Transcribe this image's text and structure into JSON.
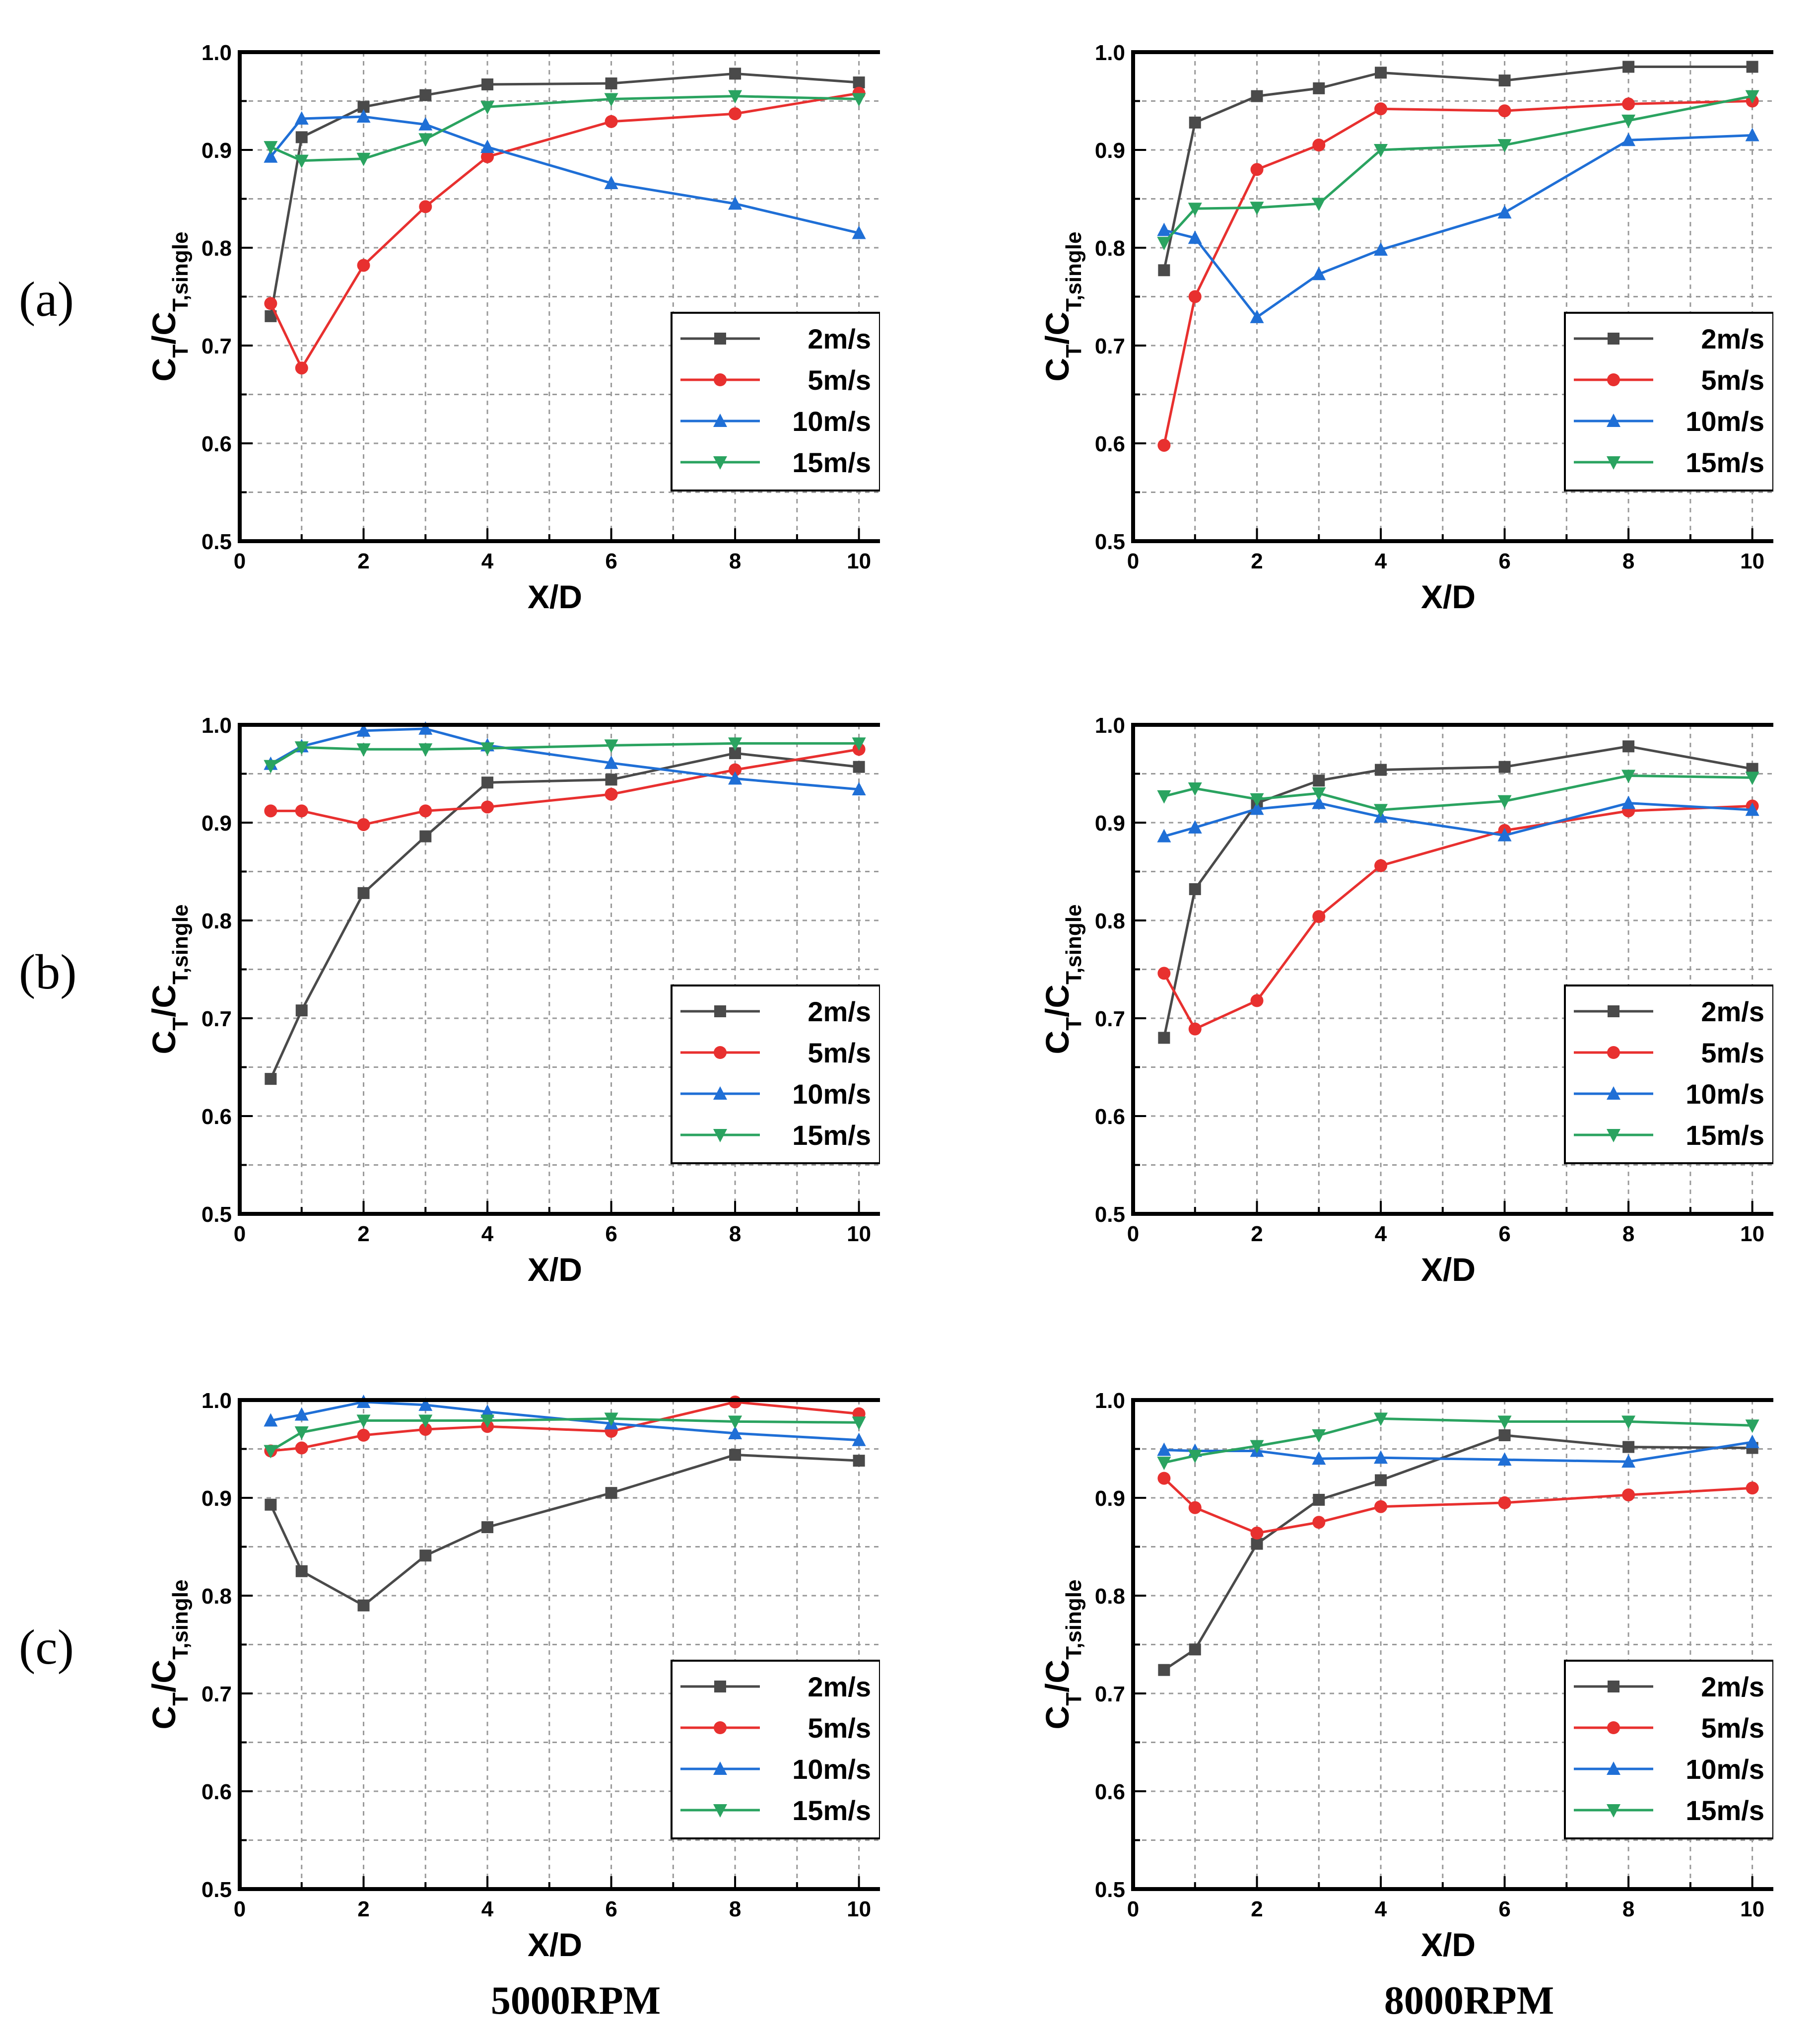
{
  "figure": {
    "row_labels": [
      "(a)",
      "(b)",
      "(c)"
    ],
    "col_labels": [
      "5000RPM",
      "8000RPM"
    ]
  },
  "legend_labels": [
    "2m/s",
    "5m/s",
    "10m/s",
    "15m/s"
  ],
  "series_colors": [
    "#4a4a4a",
    "#e8302f",
    "#1f6fd6",
    "#2aa360"
  ],
  "series_markers": [
    "square",
    "circle",
    "triangle-up",
    "triangle-down"
  ],
  "chart_data": [
    {
      "type": "line",
      "panel": "(a) 5000RPM",
      "xlabel": "X/D",
      "ylabel_main": "C",
      "ylabel_sub": "T",
      "ylabel_main2": "/C",
      "ylabel_sub2": "T,single",
      "xlim": [
        0,
        10.5
      ],
      "ylim": [
        0.5,
        1.0
      ],
      "xticks": [
        0,
        2,
        4,
        6,
        8,
        10
      ],
      "yticks": [
        0.5,
        0.6,
        0.7,
        0.8,
        0.9,
        1.0
      ],
      "x": [
        0.5,
        1,
        2,
        3,
        4,
        6,
        8,
        10
      ],
      "series": [
        {
          "name": "2m/s",
          "values": [
            0.73,
            0.913,
            0.944,
            0.956,
            0.967,
            0.968,
            0.978,
            0.969
          ]
        },
        {
          "name": "5m/s",
          "values": [
            0.743,
            0.677,
            0.782,
            0.842,
            0.893,
            0.929,
            0.937,
            0.958
          ]
        },
        {
          "name": "10m/s",
          "values": [
            0.893,
            0.932,
            0.934,
            0.926,
            0.903,
            0.866,
            0.845,
            0.815
          ]
        },
        {
          "name": "15m/s",
          "values": [
            0.903,
            0.889,
            0.891,
            0.911,
            0.944,
            0.952,
            0.955,
            0.952
          ]
        }
      ]
    },
    {
      "type": "line",
      "panel": "(a) 8000RPM",
      "xlabel": "X/D",
      "ylabel_main": "C",
      "ylabel_sub": "T",
      "ylabel_main2": "/C",
      "ylabel_sub2": "T,single",
      "xlim": [
        0,
        10.5
      ],
      "ylim": [
        0.5,
        1.0
      ],
      "xticks": [
        0,
        2,
        4,
        6,
        8,
        10
      ],
      "yticks": [
        0.5,
        0.6,
        0.7,
        0.8,
        0.9,
        1.0
      ],
      "x": [
        0.5,
        1,
        2,
        3,
        4,
        6,
        8,
        10
      ],
      "series": [
        {
          "name": "2m/s",
          "values": [
            0.777,
            0.928,
            0.955,
            0.963,
            0.979,
            0.971,
            0.985,
            0.985
          ]
        },
        {
          "name": "5m/s",
          "values": [
            0.598,
            0.75,
            0.88,
            0.905,
            0.942,
            0.94,
            0.947,
            0.95
          ]
        },
        {
          "name": "10m/s",
          "values": [
            0.818,
            0.81,
            0.729,
            0.773,
            0.798,
            0.836,
            0.91,
            0.915
          ]
        },
        {
          "name": "15m/s",
          "values": [
            0.805,
            0.84,
            0.841,
            0.845,
            0.9,
            0.905,
            0.93,
            0.955
          ]
        }
      ]
    },
    {
      "type": "line",
      "panel": "(b) 5000RPM",
      "xlabel": "X/D",
      "ylabel_main": "C",
      "ylabel_sub": "T",
      "ylabel_main2": "/C",
      "ylabel_sub2": "T,single",
      "xlim": [
        0,
        10.5
      ],
      "ylim": [
        0.5,
        1.0
      ],
      "xticks": [
        0,
        2,
        4,
        6,
        8,
        10
      ],
      "yticks": [
        0.5,
        0.6,
        0.7,
        0.8,
        0.9,
        1.0
      ],
      "x": [
        0.5,
        1,
        2,
        3,
        4,
        6,
        8,
        10
      ],
      "series": [
        {
          "name": "2m/s",
          "values": [
            0.638,
            0.708,
            0.828,
            0.886,
            0.941,
            0.944,
            0.971,
            0.957
          ]
        },
        {
          "name": "5m/s",
          "values": [
            0.912,
            0.912,
            0.898,
            0.912,
            0.916,
            0.929,
            0.954,
            0.975
          ]
        },
        {
          "name": "10m/s",
          "values": [
            0.96,
            0.978,
            0.994,
            0.996,
            0.979,
            0.961,
            0.945,
            0.934
          ]
        },
        {
          "name": "15m/s",
          "values": [
            0.958,
            0.977,
            0.975,
            0.975,
            0.976,
            0.979,
            0.981,
            0.981
          ]
        }
      ]
    },
    {
      "type": "line",
      "panel": "(b) 8000RPM",
      "xlabel": "X/D",
      "ylabel_main": "C",
      "ylabel_sub": "T",
      "ylabel_main2": "/C",
      "ylabel_sub2": "T,single",
      "xlim": [
        0,
        10.5
      ],
      "ylim": [
        0.5,
        1.0
      ],
      "xticks": [
        0,
        2,
        4,
        6,
        8,
        10
      ],
      "yticks": [
        0.5,
        0.6,
        0.7,
        0.8,
        0.9,
        1.0
      ],
      "x": [
        0.5,
        1,
        2,
        3,
        4,
        6,
        8,
        10
      ],
      "series": [
        {
          "name": "2m/s",
          "values": [
            0.68,
            0.832,
            0.92,
            0.943,
            0.954,
            0.957,
            0.978,
            0.955
          ]
        },
        {
          "name": "5m/s",
          "values": [
            0.746,
            0.689,
            0.718,
            0.804,
            0.856,
            0.892,
            0.912,
            0.917
          ]
        },
        {
          "name": "10m/s",
          "values": [
            0.886,
            0.895,
            0.914,
            0.92,
            0.906,
            0.887,
            0.92,
            0.913
          ]
        },
        {
          "name": "15m/s",
          "values": [
            0.927,
            0.935,
            0.924,
            0.93,
            0.913,
            0.922,
            0.948,
            0.946
          ]
        }
      ]
    },
    {
      "type": "line",
      "panel": "(c) 5000RPM",
      "xlabel": "X/D",
      "ylabel_main": "C",
      "ylabel_sub": "T",
      "ylabel_main2": "/C",
      "ylabel_sub2": "T,single",
      "xlim": [
        0,
        10.5
      ],
      "ylim": [
        0.5,
        1.0
      ],
      "xticks": [
        0,
        2,
        4,
        6,
        8,
        10
      ],
      "yticks": [
        0.5,
        0.6,
        0.7,
        0.8,
        0.9,
        1.0
      ],
      "x": [
        0.5,
        1,
        2,
        3,
        4,
        6,
        8,
        10
      ],
      "series": [
        {
          "name": "2m/s",
          "values": [
            0.893,
            0.825,
            0.79,
            0.841,
            0.87,
            0.905,
            0.944,
            0.938
          ]
        },
        {
          "name": "5m/s",
          "values": [
            0.948,
            0.951,
            0.964,
            0.97,
            0.973,
            0.968,
            0.998,
            0.986
          ]
        },
        {
          "name": "10m/s",
          "values": [
            0.979,
            0.985,
            0.998,
            0.995,
            0.988,
            0.976,
            0.966,
            0.959
          ]
        },
        {
          "name": "15m/s",
          "values": [
            0.948,
            0.967,
            0.979,
            0.979,
            0.979,
            0.981,
            0.978,
            0.977
          ]
        }
      ]
    },
    {
      "type": "line",
      "panel": "(c) 8000RPM",
      "xlabel": "X/D",
      "ylabel_main": "C",
      "ylabel_sub": "T",
      "ylabel_main2": "/C",
      "ylabel_sub2": "T,single",
      "xlim": [
        0,
        10.5
      ],
      "ylim": [
        0.5,
        1.0
      ],
      "xticks": [
        0,
        2,
        4,
        6,
        8,
        10
      ],
      "yticks": [
        0.5,
        0.6,
        0.7,
        0.8,
        0.9,
        1.0
      ],
      "x": [
        0.5,
        1,
        2,
        3,
        4,
        6,
        8,
        10
      ],
      "series": [
        {
          "name": "2m/s",
          "values": [
            0.724,
            0.745,
            0.853,
            0.898,
            0.918,
            0.964,
            0.952,
            0.951
          ]
        },
        {
          "name": "5m/s",
          "values": [
            0.92,
            0.89,
            0.864,
            0.875,
            0.891,
            0.895,
            0.903,
            0.91
          ]
        },
        {
          "name": "10m/s",
          "values": [
            0.949,
            0.948,
            0.948,
            0.94,
            0.941,
            0.939,
            0.937,
            0.957
          ]
        },
        {
          "name": "15m/s",
          "values": [
            0.936,
            0.943,
            0.953,
            0.964,
            0.981,
            0.978,
            0.978,
            0.974
          ]
        }
      ]
    }
  ]
}
